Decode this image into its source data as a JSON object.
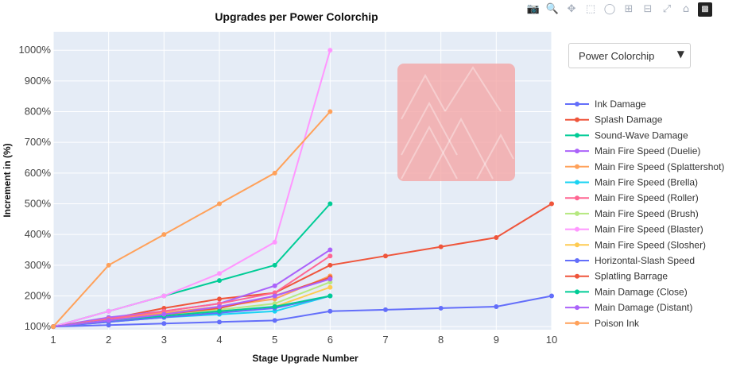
{
  "chart_data": {
    "type": "line",
    "title": "Upgrades per Power Colorchip",
    "xlabel": "Stage Upgrade Number",
    "ylabel": "Increment in (%)",
    "xlim": [
      1,
      10
    ],
    "ylim": [
      90,
      1060
    ],
    "x_ticks": [
      "1",
      "2",
      "3",
      "4",
      "5",
      "6",
      "7",
      "8",
      "9",
      "10"
    ],
    "y_ticks": [
      "100%",
      "200%",
      "300%",
      "400%",
      "500%",
      "600%",
      "700%",
      "800%",
      "900%",
      "1000%"
    ],
    "grid": true,
    "legend_position": "right",
    "series": [
      {
        "name": "Ink Damage",
        "color": "#636efa",
        "x": [
          1,
          2,
          3,
          4,
          5,
          6,
          7,
          8,
          9,
          10
        ],
        "y": [
          100,
          105,
          110,
          115,
          120,
          150,
          155,
          160,
          165,
          200
        ]
      },
      {
        "name": "Splash Damage",
        "color": "#ef553b",
        "x": [
          1,
          2,
          3,
          4,
          5,
          6,
          7,
          8,
          9,
          10
        ],
        "y": [
          100,
          125,
          160,
          190,
          210,
          300,
          330,
          360,
          390,
          500
        ]
      },
      {
        "name": "Sound-Wave Damage",
        "color": "#00cc96",
        "x": [
          1,
          2,
          3,
          4,
          5,
          6
        ],
        "y": [
          100,
          150,
          200,
          250,
          300,
          500
        ]
      },
      {
        "name": "Main Fire Speed (Duelie)",
        "color": "#ab63fa",
        "x": [
          1,
          2,
          3,
          4,
          5,
          6
        ],
        "y": [
          100,
          130,
          150,
          175,
          233,
          350
        ]
      },
      {
        "name": "Main Fire Speed (Splattershot)",
        "color": "#ffa15a",
        "x": [
          1,
          2,
          3,
          4,
          5,
          6
        ],
        "y": [
          100,
          125,
          145,
          165,
          190,
          265
        ]
      },
      {
        "name": "Main Fire Speed (Brella)",
        "color": "#19d3f3",
        "x": [
          1,
          2,
          3,
          4,
          5,
          6
        ],
        "y": [
          100,
          115,
          130,
          140,
          150,
          200
        ]
      },
      {
        "name": "Main Fire Speed (Roller)",
        "color": "#ff6692",
        "x": [
          1,
          2,
          3,
          4,
          5,
          6
        ],
        "y": [
          100,
          125,
          150,
          175,
          210,
          330
        ]
      },
      {
        "name": "Main Fire Speed (Brush)",
        "color": "#b6e880",
        "x": [
          1,
          2,
          3,
          4,
          5,
          6
        ],
        "y": [
          100,
          120,
          140,
          155,
          175,
          245
        ]
      },
      {
        "name": "Main Fire Speed (Blaster)",
        "color": "#ff97ff",
        "x": [
          1,
          2,
          3,
          4,
          5,
          6
        ],
        "y": [
          100,
          150,
          200,
          273,
          375,
          1000
        ]
      },
      {
        "name": "Main Fire Speed (Slosher)",
        "color": "#fecb52",
        "x": [
          1,
          2,
          3,
          4,
          5,
          6
        ],
        "y": [
          100,
          120,
          135,
          150,
          165,
          228
        ]
      },
      {
        "name": "Horizontal-Slash Speed",
        "color": "#636efa",
        "x": [
          1,
          2,
          3,
          4,
          5,
          6
        ],
        "y": [
          100,
          115,
          130,
          145,
          160,
          200
        ]
      },
      {
        "name": "Splatling Barrage",
        "color": "#ef553b",
        "x": [
          1,
          2,
          3,
          4,
          5,
          6
        ],
        "y": [
          100,
          120,
          140,
          160,
          200,
          260
        ]
      },
      {
        "name": "Main Damage (Close)",
        "color": "#00cc96",
        "x": [
          1,
          2,
          3,
          4,
          5,
          6
        ],
        "y": [
          100,
          120,
          135,
          150,
          165,
          200
        ]
      },
      {
        "name": "Main Damage (Distant)",
        "color": "#ab63fa",
        "x": [
          1,
          2,
          3,
          4,
          5,
          6
        ],
        "y": [
          100,
          120,
          140,
          165,
          200,
          255
        ]
      },
      {
        "name": "Poison Ink",
        "color": "#ffa15a",
        "x": [
          1,
          2,
          3,
          4,
          5,
          6
        ],
        "y": [
          100,
          300,
          400,
          500,
          600,
          800
        ]
      }
    ]
  },
  "toolbar": {
    "icons": [
      "camera-icon",
      "zoom-icon",
      "pan-icon",
      "box-select-icon",
      "lasso-select-icon",
      "zoom-in-icon",
      "zoom-out-icon",
      "autoscale-icon",
      "reset-axes-icon",
      "plotly-logo-icon"
    ]
  },
  "dropdown": {
    "selected": "Power Colorchip"
  },
  "colors": {
    "plot_background": "#e5ecf6",
    "grid": "#ffffff",
    "watermark": "#f4a6a6"
  }
}
